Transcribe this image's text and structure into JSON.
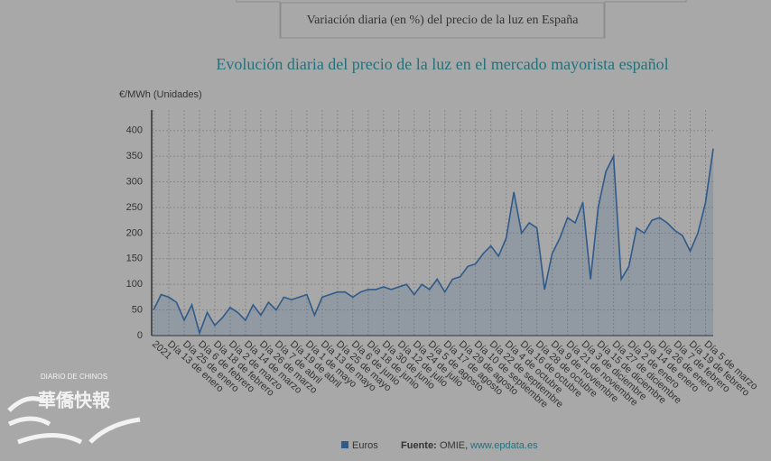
{
  "tab": "Variación diaria (en %) del precio de la luz en España",
  "chart_data": {
    "type": "line",
    "title": "Evolución diaria del precio de la luz en el mercado mayorista español",
    "y_label": "€/MWh (Unidades)",
    "categories": [
      "2021",
      null,
      "Día 13 de enero",
      null,
      "Día 25 de enero",
      null,
      "Día 6 de febrero",
      null,
      "Día 18 de febrero",
      null,
      "Día 2 de marzo",
      null,
      "Día 14 de marzo",
      null,
      "Día 26 de marzo",
      null,
      "Día 7 de abril",
      null,
      "Día 19 de abril",
      null,
      "Día 1 de mayo",
      null,
      "Día 13 de mayo",
      null,
      "Día 25 de mayo",
      null,
      "Día 6 de junio",
      null,
      "Día 18 de junio",
      null,
      "Día 30 de junio",
      null,
      "Día 12 de julio",
      null,
      "Día 24 de julio",
      null,
      "Día 5 de agosto",
      null,
      "Día 17 de agosto",
      null,
      "Día 29 de agosto",
      null,
      "Día 10 de septiembre",
      null,
      "Día 22 de septiembre",
      null,
      "Día 4 de octubre",
      null,
      "Día 16 de octubre",
      null,
      "Día 28 de octubre",
      null,
      "Día 9 de noviembre",
      null,
      "Día 21 de noviembre",
      null,
      "Día 3 de diciembre",
      null,
      "Día 15 de diciembre",
      null,
      "Día 27 de diciembre",
      null,
      "Día 2 de enero",
      null,
      "Día 14 de enero",
      null,
      "Día 26 de enero",
      null,
      "Día 7 de febrero",
      null,
      "Día 19 de febrero",
      null,
      "Día 5 de marzo",
      null
    ],
    "series": [
      {
        "name": "Euros",
        "color": "#2f5a8a",
        "values": [
          50,
          80,
          75,
          65,
          30,
          60,
          5,
          45,
          20,
          35,
          55,
          45,
          30,
          60,
          40,
          65,
          50,
          75,
          70,
          75,
          80,
          40,
          75,
          80,
          85,
          85,
          75,
          85,
          90,
          90,
          95,
          90,
          95,
          100,
          80,
          100,
          90,
          110,
          85,
          110,
          115,
          135,
          140,
          160,
          175,
          155,
          190,
          280,
          200,
          220,
          210,
          90,
          160,
          190,
          230,
          220,
          260,
          110,
          250,
          320,
          350,
          110,
          135,
          210,
          200,
          225,
          230,
          220,
          205,
          195,
          165,
          200,
          260,
          365
        ]
      }
    ],
    "ylim": [
      0,
      440
    ],
    "yticks": [
      0,
      50,
      100,
      150,
      200,
      250,
      300,
      350,
      400
    ],
    "grid": true,
    "source_label": "Fuente:",
    "source": "OMIE,",
    "source_url": "www.epdata.es"
  },
  "watermark": {
    "title": "華僑快報",
    "subtitle": "DIARIO DE CHINOS"
  }
}
